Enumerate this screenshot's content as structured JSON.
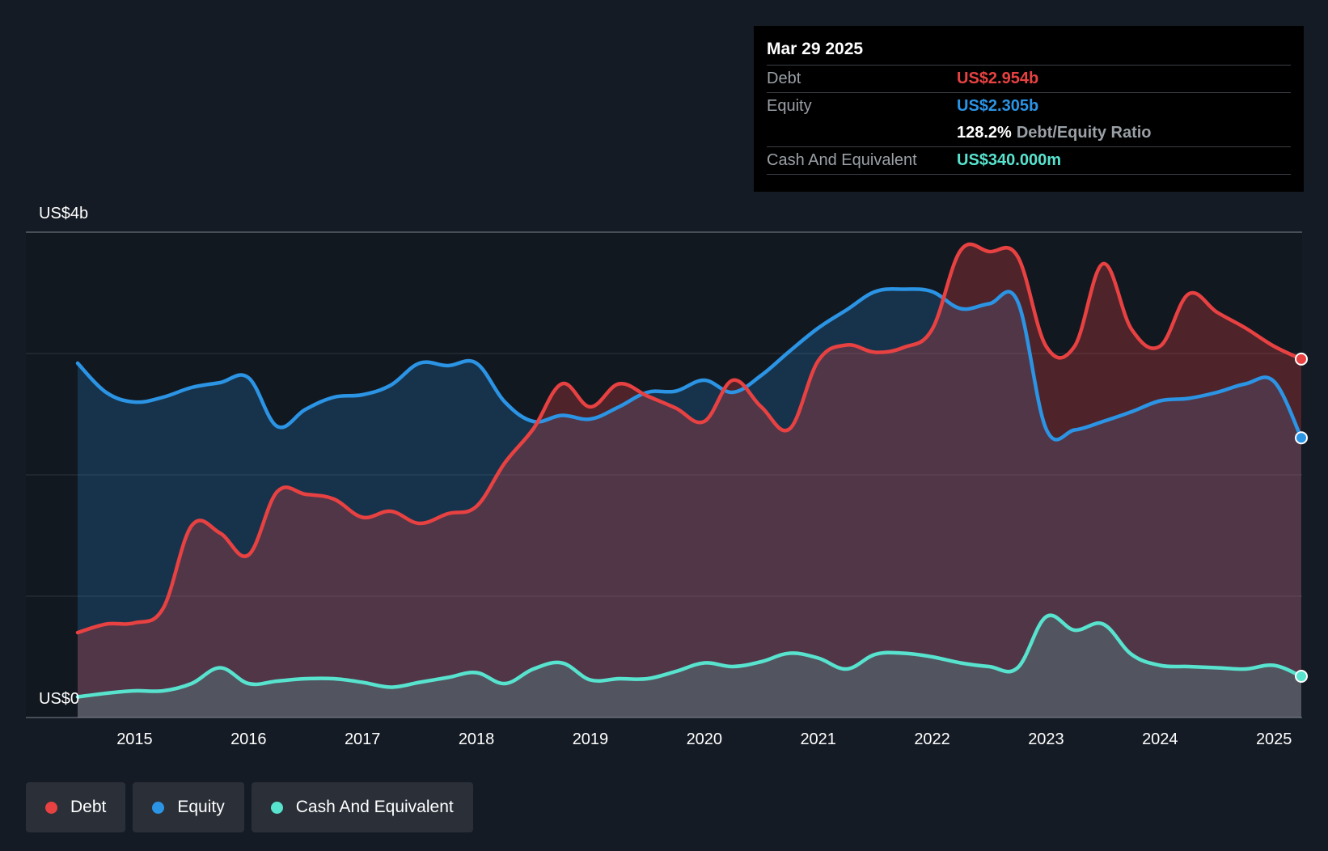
{
  "chart_data": {
    "type": "area",
    "title": "",
    "y_axis": {
      "top_label": "US$4b",
      "bottom_label": "US$0",
      "ylim": [
        0,
        4.0
      ],
      "unit": "US$ billions"
    },
    "x_ticks": [
      "2015",
      "2016",
      "2017",
      "2018",
      "2019",
      "2020",
      "2021",
      "2022",
      "2023",
      "2024",
      "2025"
    ],
    "xlim": [
      2014.5,
      2025.24
    ],
    "series": [
      {
        "name": "Debt",
        "color": "#e84142",
        "x": [
          2014.5,
          2014.75,
          2015.0,
          2015.25,
          2015.5,
          2015.75,
          2016.0,
          2016.25,
          2016.5,
          2016.75,
          2017.0,
          2017.25,
          2017.5,
          2017.75,
          2018.0,
          2018.25,
          2018.5,
          2018.75,
          2019.0,
          2019.25,
          2019.5,
          2019.75,
          2020.0,
          2020.25,
          2020.5,
          2020.75,
          2021.0,
          2021.25,
          2021.5,
          2021.75,
          2022.0,
          2022.25,
          2022.5,
          2022.75,
          2023.0,
          2023.25,
          2023.5,
          2023.75,
          2024.0,
          2024.25,
          2024.5,
          2024.75,
          2025.0,
          2025.24
        ],
        "values": [
          0.7,
          0.77,
          0.78,
          0.9,
          1.58,
          1.52,
          1.34,
          1.86,
          1.84,
          1.8,
          1.65,
          1.7,
          1.6,
          1.68,
          1.74,
          2.1,
          2.38,
          2.75,
          2.56,
          2.75,
          2.65,
          2.55,
          2.44,
          2.78,
          2.56,
          2.38,
          2.94,
          3.07,
          3.01,
          3.05,
          3.2,
          3.85,
          3.84,
          3.8,
          3.06,
          3.06,
          3.74,
          3.2,
          3.06,
          3.49,
          3.34,
          3.21,
          3.06,
          2.954
        ]
      },
      {
        "name": "Equity",
        "color": "#2b94e5",
        "x": [
          2014.5,
          2014.75,
          2015.0,
          2015.25,
          2015.5,
          2015.75,
          2016.0,
          2016.25,
          2016.5,
          2016.75,
          2017.0,
          2017.25,
          2017.5,
          2017.75,
          2018.0,
          2018.25,
          2018.5,
          2018.75,
          2019.0,
          2019.25,
          2019.5,
          2019.75,
          2020.0,
          2020.25,
          2020.5,
          2020.75,
          2021.0,
          2021.25,
          2021.5,
          2021.75,
          2022.0,
          2022.25,
          2022.5,
          2022.75,
          2023.0,
          2023.25,
          2023.5,
          2023.75,
          2024.0,
          2024.25,
          2024.5,
          2024.75,
          2025.0,
          2025.24
        ],
        "values": [
          2.92,
          2.68,
          2.6,
          2.64,
          2.72,
          2.76,
          2.8,
          2.4,
          2.54,
          2.64,
          2.66,
          2.74,
          2.92,
          2.9,
          2.92,
          2.6,
          2.44,
          2.49,
          2.46,
          2.56,
          2.68,
          2.69,
          2.78,
          2.68,
          2.82,
          3.02,
          3.21,
          3.36,
          3.51,
          3.53,
          3.51,
          3.37,
          3.41,
          3.43,
          2.38,
          2.37,
          2.44,
          2.52,
          2.61,
          2.63,
          2.68,
          2.75,
          2.77,
          2.305
        ]
      },
      {
        "name": "Cash And Equivalent",
        "color": "#58e3cf",
        "x": [
          2014.5,
          2014.75,
          2015.0,
          2015.25,
          2015.5,
          2015.75,
          2016.0,
          2016.25,
          2016.5,
          2016.75,
          2017.0,
          2017.25,
          2017.5,
          2017.75,
          2018.0,
          2018.25,
          2018.5,
          2018.75,
          2019.0,
          2019.25,
          2019.5,
          2019.75,
          2020.0,
          2020.25,
          2020.5,
          2020.75,
          2021.0,
          2021.25,
          2021.5,
          2021.75,
          2022.0,
          2022.25,
          2022.5,
          2022.75,
          2023.0,
          2023.25,
          2023.5,
          2023.75,
          2024.0,
          2024.25,
          2024.5,
          2024.75,
          2025.0,
          2025.24
        ],
        "values": [
          0.17,
          0.2,
          0.22,
          0.22,
          0.28,
          0.41,
          0.28,
          0.3,
          0.32,
          0.32,
          0.29,
          0.25,
          0.29,
          0.33,
          0.37,
          0.28,
          0.4,
          0.45,
          0.31,
          0.32,
          0.32,
          0.38,
          0.45,
          0.42,
          0.46,
          0.53,
          0.49,
          0.4,
          0.52,
          0.53,
          0.5,
          0.45,
          0.42,
          0.41,
          0.83,
          0.72,
          0.77,
          0.52,
          0.43,
          0.42,
          0.41,
          0.4,
          0.43,
          0.34
        ]
      }
    ],
    "tooltip": {
      "date": "Mar 29 2025",
      "debt_label": "Debt",
      "debt_value": "US$2.954b",
      "equity_label": "Equity",
      "equity_value": "US$2.305b",
      "ratio_value": "128.2%",
      "ratio_label": "Debt/Equity Ratio",
      "cash_label": "Cash And Equivalent",
      "cash_value": "US$340.000m"
    },
    "legend": [
      "Debt",
      "Equity",
      "Cash And Equivalent"
    ]
  }
}
